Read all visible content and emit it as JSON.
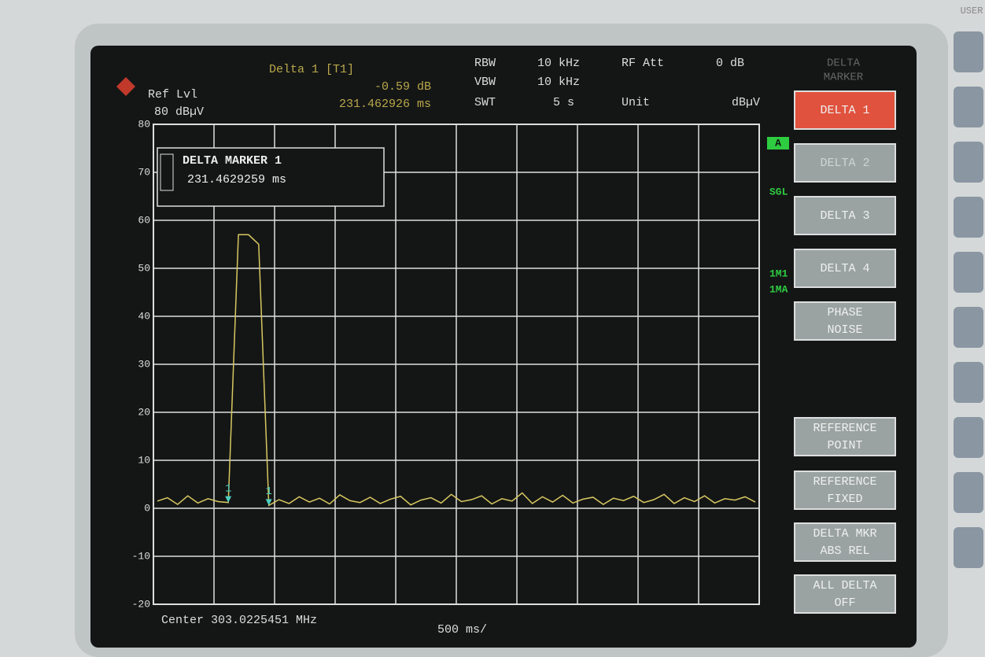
{
  "header": {
    "delta_label": "Delta 1 [T1]",
    "delta_level": "-0.59 dB",
    "delta_time": "231.462926 ms",
    "ref_lvl_label": "Ref Lvl",
    "ref_lvl_value": "80 dBµV",
    "rbw_label": "RBW",
    "rbw_value": "10 kHz",
    "rf_att_label": "RF Att",
    "rf_att_value": "0 dB",
    "vbw_label": "VBW",
    "vbw_value": "10 kHz",
    "swt_label": "SWT",
    "swt_value": "5 s",
    "unit_label": "Unit",
    "unit_value": "dBµV"
  },
  "marker_box": {
    "title": "DELTA MARKER 1",
    "value": "231.4629259 ms"
  },
  "side_labels": [
    "A",
    "SGL",
    "1M1",
    "1MA"
  ],
  "plot": {
    "ylim": [
      -20,
      80
    ],
    "yticks": [
      80,
      70,
      60,
      50,
      40,
      30,
      20,
      10,
      0,
      -10,
      -20
    ],
    "trace": [
      1.5,
      2.2,
      0.8,
      2.6,
      1.1,
      2.0,
      1.4,
      1.2,
      57,
      57,
      55,
      0.6,
      1.8,
      1.0,
      2.4,
      1.3,
      2.1,
      0.9,
      2.8,
      1.6,
      1.2,
      2.3,
      1.0,
      1.9,
      2.5,
      0.7,
      1.7,
      2.2,
      1.1,
      2.9,
      1.4,
      1.8,
      2.6,
      0.9,
      2.0,
      1.5,
      3.2,
      1.0,
      2.4,
      1.3,
      2.7,
      1.1,
      1.9,
      2.3,
      0.8,
      2.1,
      1.6,
      2.5,
      1.2,
      1.8,
      2.9,
      1.0,
      2.2,
      1.4,
      2.6,
      1.1,
      2.0,
      1.7,
      2.4,
      1.3
    ],
    "marker_labels": [
      "1",
      "1"
    ],
    "center": "Center 303.0225451 MHz",
    "span": "500 ms/"
  },
  "softkeys": {
    "menu_title": [
      "DELTA",
      "MARKER"
    ],
    "keys": [
      [
        "DELTA 1"
      ],
      [
        "DELTA 2"
      ],
      [
        "DELTA 3"
      ],
      [
        "DELTA 4"
      ],
      [
        "PHASE",
        "NOISE"
      ],
      [
        "REFERENCE",
        "POINT"
      ],
      [
        "REFERENCE",
        "FIXED"
      ],
      [
        "DELTA MKR",
        "ABS REL"
      ],
      [
        "ALL DELTA",
        "OFF"
      ]
    ]
  },
  "corner_label": "USER"
}
